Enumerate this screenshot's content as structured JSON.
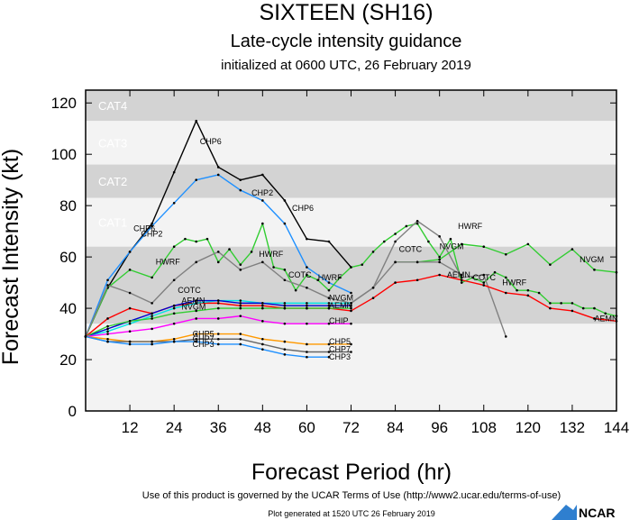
{
  "chart_data": {
    "type": "line",
    "title": "SIXTEEN (SH16)",
    "subtitle": "Late-cycle intensity guidance",
    "init_text": "initialized at 0600 UTC, 26 February 2019",
    "xlabel": "Forecast Period (hr)",
    "ylabel": "Forecast Intensity (kt)",
    "xlim": [
      0,
      144
    ],
    "ylim": [
      0,
      125
    ],
    "xticks": [
      "12",
      "24",
      "36",
      "48",
      "60",
      "72",
      "84",
      "96",
      "108",
      "120",
      "132",
      "144"
    ],
    "xtick_values": [
      12,
      24,
      36,
      48,
      60,
      72,
      84,
      96,
      108,
      120,
      132,
      144
    ],
    "yticks": [
      "0",
      "20",
      "40",
      "60",
      "80",
      "100",
      "120"
    ],
    "ytick_values": [
      0,
      20,
      40,
      60,
      80,
      100,
      120
    ],
    "bands": [
      {
        "label": "CAT4",
        "from": 113,
        "to": 125,
        "color": "#d3d3d3"
      },
      {
        "label": "CAT3",
        "from": 96,
        "to": 113,
        "color": "#f3f3f3"
      },
      {
        "label": "CAT2",
        "from": 83,
        "to": 96,
        "color": "#d3d3d3"
      },
      {
        "label": "CAT1",
        "from": 64,
        "to": 83,
        "color": "#f3f3f3"
      },
      {
        "label": "",
        "from": 34,
        "to": 64,
        "color": "#d3d3d3"
      }
    ],
    "series": [
      {
        "name": "CHP6",
        "color": "#000000",
        "x": [
          0,
          6,
          12,
          18,
          24,
          30,
          36,
          42,
          48,
          54,
          60,
          66,
          72
        ],
        "y": [
          29,
          48,
          62,
          73,
          93,
          113,
          95,
          90,
          92,
          82,
          67,
          66,
          56
        ]
      },
      {
        "name": "CHP2",
        "color": "#1e90ff",
        "x": [
          0,
          6,
          12,
          18,
          24,
          30,
          36,
          42,
          48,
          54,
          60,
          66,
          72
        ],
        "y": [
          29,
          51,
          62,
          72,
          81,
          90,
          92,
          86,
          82,
          73,
          56,
          50,
          46
        ]
      },
      {
        "name": "HWRF",
        "color": "#32cd32",
        "x": [
          0,
          6,
          12,
          18,
          24,
          27,
          30,
          33,
          36,
          39,
          42,
          45,
          48,
          51,
          54,
          57,
          60,
          63,
          66,
          69,
          72,
          75,
          78,
          81,
          84,
          87,
          90,
          93,
          96,
          99,
          102,
          105,
          108,
          111,
          114,
          117,
          120,
          123,
          126,
          129,
          132,
          135,
          138,
          141,
          144
        ],
        "y": [
          29,
          48,
          55,
          52,
          64,
          67,
          66,
          67,
          58,
          63,
          57,
          62,
          73,
          56,
          55,
          47,
          53,
          51,
          47,
          52,
          56,
          57,
          62,
          66,
          69,
          72,
          73,
          66,
          60,
          67,
          50,
          52,
          50,
          54,
          52,
          47,
          47,
          46,
          42,
          42,
          42,
          40,
          40,
          38,
          37
        ]
      },
      {
        "name": "COTC",
        "color": "#808080",
        "x": [
          0,
          6,
          12,
          18,
          24,
          30,
          36,
          42,
          48,
          54,
          60,
          66,
          72,
          78,
          84,
          90,
          96,
          102,
          108,
          114
        ],
        "y": [
          29,
          49,
          46,
          42,
          51,
          58,
          62,
          55,
          58,
          51,
          48,
          44,
          42,
          48,
          66,
          74,
          68,
          52,
          53,
          29
        ]
      },
      {
        "name": "NVGM",
        "color": "#32cd32",
        "x": [
          84,
          90,
          96,
          102,
          108,
          114,
          120,
          126,
          132,
          138,
          144
        ],
        "y": [
          58,
          58,
          59,
          65,
          64,
          61,
          65,
          57,
          63,
          55,
          54
        ]
      },
      {
        "name": "NVGM",
        "color": "#808080",
        "x": [
          72,
          78,
          84,
          90,
          96,
          102
        ],
        "y": [
          42,
          48,
          58,
          58,
          58,
          53
        ]
      },
      {
        "name": "AEMN",
        "color": "#ff0000",
        "x": [
          0,
          6,
          12,
          18,
          24,
          30,
          36,
          42,
          48,
          54,
          60,
          66,
          72,
          78,
          84,
          90,
          96,
          102,
          108,
          114,
          120,
          126,
          132,
          138,
          144
        ],
        "y": [
          29,
          36,
          40,
          38,
          41,
          42,
          42,
          41,
          41,
          40,
          40,
          40,
          39,
          44,
          50,
          51,
          53,
          51,
          49,
          46,
          45,
          40,
          39,
          36,
          35
        ]
      },
      {
        "name": "NVGM",
        "color": "#00e5e5",
        "x": [
          0,
          6,
          12,
          18,
          24,
          30,
          36,
          42,
          48,
          54,
          60,
          66,
          72
        ],
        "y": [
          29,
          31,
          34,
          37,
          40,
          42,
          43,
          43,
          42,
          42,
          42,
          42,
          42
        ]
      },
      {
        "name": "NVGM",
        "color": "#0000cd",
        "x": [
          0,
          6,
          12,
          18,
          24,
          30,
          36,
          42,
          48,
          54,
          60,
          66,
          72
        ],
        "y": [
          29,
          32,
          35,
          38,
          41,
          43,
          43,
          42,
          42,
          41,
          41,
          41,
          41
        ]
      },
      {
        "name": "NVGM",
        "color": "#32cd32",
        "x": [
          0,
          6,
          12,
          18,
          24,
          30,
          36,
          42,
          48,
          54,
          60,
          66,
          72
        ],
        "y": [
          29,
          33,
          35,
          36,
          38,
          39,
          40,
          40,
          40,
          40,
          40,
          40,
          40
        ]
      },
      {
        "name": "CHIP",
        "color": "#ff00ff",
        "x": [
          0,
          6,
          12,
          18,
          24,
          30,
          36,
          42,
          48,
          54,
          60,
          66,
          72
        ],
        "y": [
          29,
          30,
          31,
          32,
          34,
          36,
          36,
          37,
          35,
          34,
          34,
          34,
          34
        ]
      },
      {
        "name": "CHP5",
        "color": "#ff9900",
        "x": [
          0,
          6,
          12,
          18,
          24,
          30,
          36,
          42,
          48,
          54,
          60,
          66,
          72
        ],
        "y": [
          29,
          28,
          27,
          27,
          28,
          30,
          30,
          30,
          28,
          27,
          26,
          26,
          26
        ]
      },
      {
        "name": "CHP7",
        "color": "#666666",
        "x": [
          0,
          6,
          12,
          18,
          24,
          30,
          36,
          42,
          48,
          54,
          60,
          66,
          72
        ],
        "y": [
          29,
          27,
          27,
          27,
          27,
          28,
          28,
          28,
          26,
          24,
          23,
          23,
          23
        ]
      },
      {
        "name": "CHP3",
        "color": "#1e90ff",
        "x": [
          0,
          6,
          12,
          18,
          24,
          30,
          36,
          42,
          48,
          54,
          60,
          66
        ],
        "y": [
          29,
          27,
          26,
          26,
          27,
          27,
          26,
          26,
          24,
          22,
          21,
          21
        ]
      }
    ],
    "annotations": [
      {
        "text": "CHP6",
        "x": 13,
        "y": 70
      },
      {
        "text": "CHP2",
        "x": 15,
        "y": 68
      },
      {
        "text": "HWRF",
        "x": 19,
        "y": 57
      },
      {
        "text": "COTC",
        "x": 25,
        "y": 46
      },
      {
        "text": "CHP6",
        "x": 31,
        "y": 104
      },
      {
        "text": "CHP2",
        "x": 45,
        "y": 84
      },
      {
        "text": "CHP6",
        "x": 56,
        "y": 78
      },
      {
        "text": "HWRF",
        "x": 47,
        "y": 60
      },
      {
        "text": "COTC",
        "x": 55,
        "y": 52
      },
      {
        "text": "HWRF",
        "x": 63,
        "y": 51
      },
      {
        "text": "NVGM",
        "x": 66,
        "y": 43
      },
      {
        "text": "AEMN",
        "x": 66,
        "y": 40
      },
      {
        "text": "CHIP",
        "x": 66,
        "y": 34
      },
      {
        "text": "AEMN",
        "x": 26,
        "y": 42
      },
      {
        "text": "NVGM",
        "x": 26,
        "y": 39.5
      },
      {
        "text": "CHP5",
        "x": 29,
        "y": 29
      },
      {
        "text": "CHP7",
        "x": 29,
        "y": 27
      },
      {
        "text": "CHP3",
        "x": 29,
        "y": 25
      },
      {
        "text": "CHP5",
        "x": 66,
        "y": 26
      },
      {
        "text": "CHP7",
        "x": 66,
        "y": 23
      },
      {
        "text": "CHP3",
        "x": 66,
        "y": 20
      },
      {
        "text": "COTC",
        "x": 85,
        "y": 62
      },
      {
        "text": "NVGM",
        "x": 96,
        "y": 63
      },
      {
        "text": "HWRF",
        "x": 101,
        "y": 71
      },
      {
        "text": "AEMN",
        "x": 98,
        "y": 52
      },
      {
        "text": "COTC",
        "x": 105,
        "y": 51
      },
      {
        "text": "HWRF",
        "x": 113,
        "y": 49
      },
      {
        "text": "NVGM",
        "x": 134,
        "y": 58
      },
      {
        "text": "AEMN",
        "x": 138,
        "y": 35
      }
    ]
  },
  "footer": {
    "terms": "Use of this product is governed by the UCAR Terms of Use (http://www2.ucar.edu/terms-of-use)",
    "generated": "Plot generated at 1520 UTC  26 February 2019",
    "logo_text": "NCAR"
  }
}
